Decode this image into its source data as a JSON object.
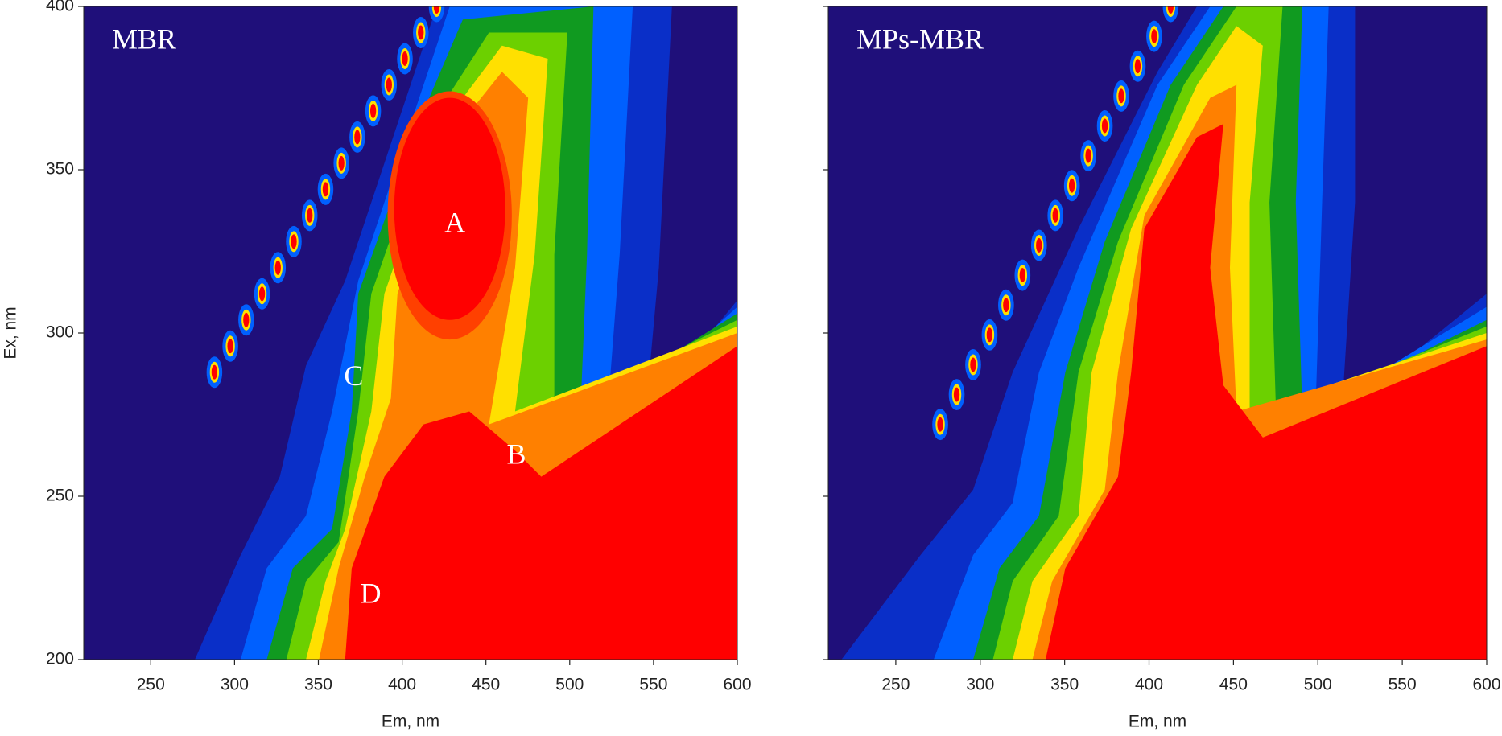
{
  "chart_data": [
    {
      "type": "contour",
      "title": "MBR",
      "xlabel": "Em, nm",
      "ylabel": "Ex, nm",
      "xlim": [
        210,
        600
      ],
      "ylim": [
        200,
        400
      ],
      "xticks": [
        250,
        300,
        350,
        400,
        450,
        500,
        550,
        600
      ],
      "yticks": [
        200,
        250,
        300,
        350,
        400
      ],
      "ytick_labels": true,
      "annotations": [
        "A",
        "B",
        "C",
        "D"
      ]
    },
    {
      "type": "contour",
      "title": "MPs-MBR",
      "xlabel": "Em, nm",
      "xlim": [
        210,
        600
      ],
      "ylim": [
        200,
        400
      ],
      "xticks": [
        250,
        300,
        350,
        400,
        450,
        500,
        550,
        600
      ],
      "yticks": [
        200,
        250,
        300,
        350,
        400
      ],
      "ytick_labels": false,
      "annotations": []
    }
  ]
}
